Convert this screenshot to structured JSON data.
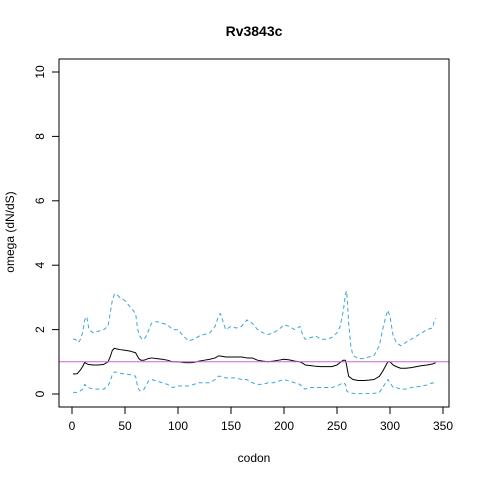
{
  "chart_data": {
    "type": "line",
    "title": "Rv3843c",
    "xlabel": "codon",
    "ylabel": "omega (dN/dS)",
    "xlim": [
      0,
      350
    ],
    "ylim": [
      0,
      10
    ],
    "xticks": [
      0,
      50,
      100,
      150,
      200,
      250,
      300,
      350
    ],
    "yticks": [
      0,
      2,
      4,
      6,
      8,
      10
    ],
    "grid": false,
    "reference_line": {
      "y": 1,
      "color": "#cc66cc"
    },
    "series": [
      {
        "role": "estimate",
        "style": "solid",
        "color": "#000000",
        "x": [
          1,
          5,
          8,
          10,
          12,
          15,
          20,
          25,
          30,
          34,
          36,
          38,
          40,
          42,
          45,
          50,
          55,
          60,
          63,
          65,
          68,
          72,
          75,
          80,
          85,
          90,
          95,
          100,
          105,
          110,
          115,
          120,
          125,
          130,
          135,
          138,
          140,
          145,
          150,
          155,
          160,
          165,
          170,
          175,
          180,
          185,
          190,
          195,
          200,
          205,
          210,
          215,
          218,
          220,
          225,
          230,
          235,
          240,
          245,
          250,
          253,
          256,
          258,
          259,
          261,
          265,
          270,
          275,
          280,
          285,
          290,
          293,
          296,
          298,
          300,
          303,
          306,
          310,
          315,
          320,
          325,
          330,
          335,
          340,
          343
        ],
        "y": [
          0.62,
          0.63,
          0.75,
          0.85,
          0.98,
          0.92,
          0.9,
          0.9,
          0.92,
          1.0,
          1.15,
          1.35,
          1.42,
          1.4,
          1.38,
          1.36,
          1.33,
          1.28,
          1.1,
          1.05,
          1.05,
          1.1,
          1.12,
          1.1,
          1.08,
          1.05,
          1.0,
          1.0,
          0.98,
          0.97,
          0.98,
          1.02,
          1.05,
          1.08,
          1.12,
          1.18,
          1.18,
          1.15,
          1.15,
          1.15,
          1.15,
          1.12,
          1.12,
          1.05,
          1.02,
          1.0,
          1.02,
          1.05,
          1.08,
          1.06,
          1.02,
          1.0,
          0.95,
          0.9,
          0.88,
          0.86,
          0.85,
          0.85,
          0.85,
          0.9,
          0.98,
          1.05,
          1.05,
          0.9,
          0.55,
          0.45,
          0.42,
          0.42,
          0.43,
          0.45,
          0.55,
          0.7,
          0.88,
          1.0,
          1.0,
          0.9,
          0.85,
          0.8,
          0.8,
          0.82,
          0.85,
          0.88,
          0.9,
          0.93,
          0.97
        ]
      },
      {
        "role": "upper-bound",
        "style": "dashed",
        "color": "#3aa6dd",
        "x": [
          1,
          3,
          6,
          8,
          10,
          12,
          14,
          16,
          20,
          25,
          30,
          34,
          36,
          38,
          40,
          42,
          45,
          50,
          55,
          60,
          62,
          64,
          66,
          68,
          70,
          75,
          80,
          85,
          90,
          95,
          100,
          105,
          110,
          115,
          120,
          125,
          130,
          135,
          138,
          140,
          142,
          145,
          150,
          155,
          160,
          165,
          170,
          175,
          180,
          185,
          190,
          195,
          200,
          205,
          210,
          215,
          218,
          220,
          225,
          230,
          235,
          240,
          245,
          250,
          253,
          256,
          258,
          259,
          260,
          261,
          263,
          265,
          270,
          275,
          280,
          285,
          290,
          293,
          296,
          298,
          300,
          303,
          306,
          310,
          315,
          320,
          325,
          330,
          335,
          340,
          342,
          343
        ],
        "y": [
          1.7,
          1.7,
          1.6,
          1.7,
          1.9,
          2.3,
          2.4,
          2.0,
          1.9,
          1.95,
          2.0,
          2.1,
          2.5,
          2.9,
          3.1,
          3.1,
          3.0,
          2.9,
          2.7,
          2.5,
          2.0,
          1.8,
          1.7,
          1.7,
          1.8,
          2.2,
          2.25,
          2.2,
          2.15,
          2.0,
          2.0,
          1.8,
          1.65,
          1.7,
          1.8,
          1.85,
          1.9,
          2.1,
          2.4,
          2.5,
          2.3,
          2.0,
          2.1,
          2.05,
          2.1,
          2.3,
          2.2,
          2.0,
          1.9,
          1.85,
          1.9,
          2.0,
          2.15,
          2.1,
          2.0,
          2.1,
          1.8,
          1.7,
          1.75,
          1.8,
          1.7,
          1.7,
          1.75,
          1.9,
          2.1,
          2.6,
          3.1,
          3.2,
          2.8,
          2.2,
          1.5,
          1.2,
          1.1,
          1.1,
          1.15,
          1.2,
          1.5,
          2.0,
          2.4,
          2.6,
          2.4,
          1.8,
          1.6,
          1.5,
          1.6,
          1.7,
          1.8,
          1.9,
          2.0,
          2.05,
          2.3,
          2.35
        ]
      },
      {
        "role": "lower-bound",
        "style": "dashed",
        "color": "#3aa6dd",
        "x": [
          1,
          5,
          8,
          10,
          12,
          15,
          20,
          25,
          30,
          34,
          36,
          38,
          40,
          42,
          45,
          50,
          55,
          60,
          62,
          64,
          66,
          68,
          72,
          75,
          80,
          85,
          90,
          95,
          100,
          105,
          110,
          115,
          120,
          125,
          130,
          135,
          138,
          140,
          145,
          150,
          155,
          160,
          165,
          170,
          175,
          180,
          185,
          190,
          195,
          200,
          205,
          210,
          215,
          218,
          220,
          225,
          230,
          235,
          240,
          245,
          250,
          253,
          256,
          258,
          259,
          261,
          265,
          270,
          275,
          280,
          285,
          290,
          293,
          296,
          298,
          300,
          303,
          306,
          310,
          315,
          320,
          325,
          330,
          335,
          340,
          343
        ],
        "y": [
          0.05,
          0.05,
          0.1,
          0.15,
          0.3,
          0.2,
          0.15,
          0.15,
          0.15,
          0.25,
          0.4,
          0.6,
          0.68,
          0.68,
          0.65,
          0.62,
          0.6,
          0.55,
          0.2,
          0.1,
          0.1,
          0.15,
          0.4,
          0.45,
          0.4,
          0.35,
          0.3,
          0.2,
          0.25,
          0.25,
          0.25,
          0.3,
          0.35,
          0.35,
          0.35,
          0.45,
          0.55,
          0.55,
          0.5,
          0.5,
          0.5,
          0.45,
          0.45,
          0.35,
          0.3,
          0.3,
          0.35,
          0.35,
          0.4,
          0.45,
          0.4,
          0.35,
          0.3,
          0.2,
          0.15,
          0.2,
          0.2,
          0.2,
          0.2,
          0.2,
          0.25,
          0.3,
          0.35,
          0.3,
          0.1,
          0.05,
          0.02,
          0.01,
          0.01,
          0.02,
          0.02,
          0.05,
          0.2,
          0.35,
          0.45,
          0.35,
          0.2,
          0.2,
          0.15,
          0.15,
          0.2,
          0.22,
          0.25,
          0.28,
          0.35,
          0.3
        ]
      }
    ]
  }
}
